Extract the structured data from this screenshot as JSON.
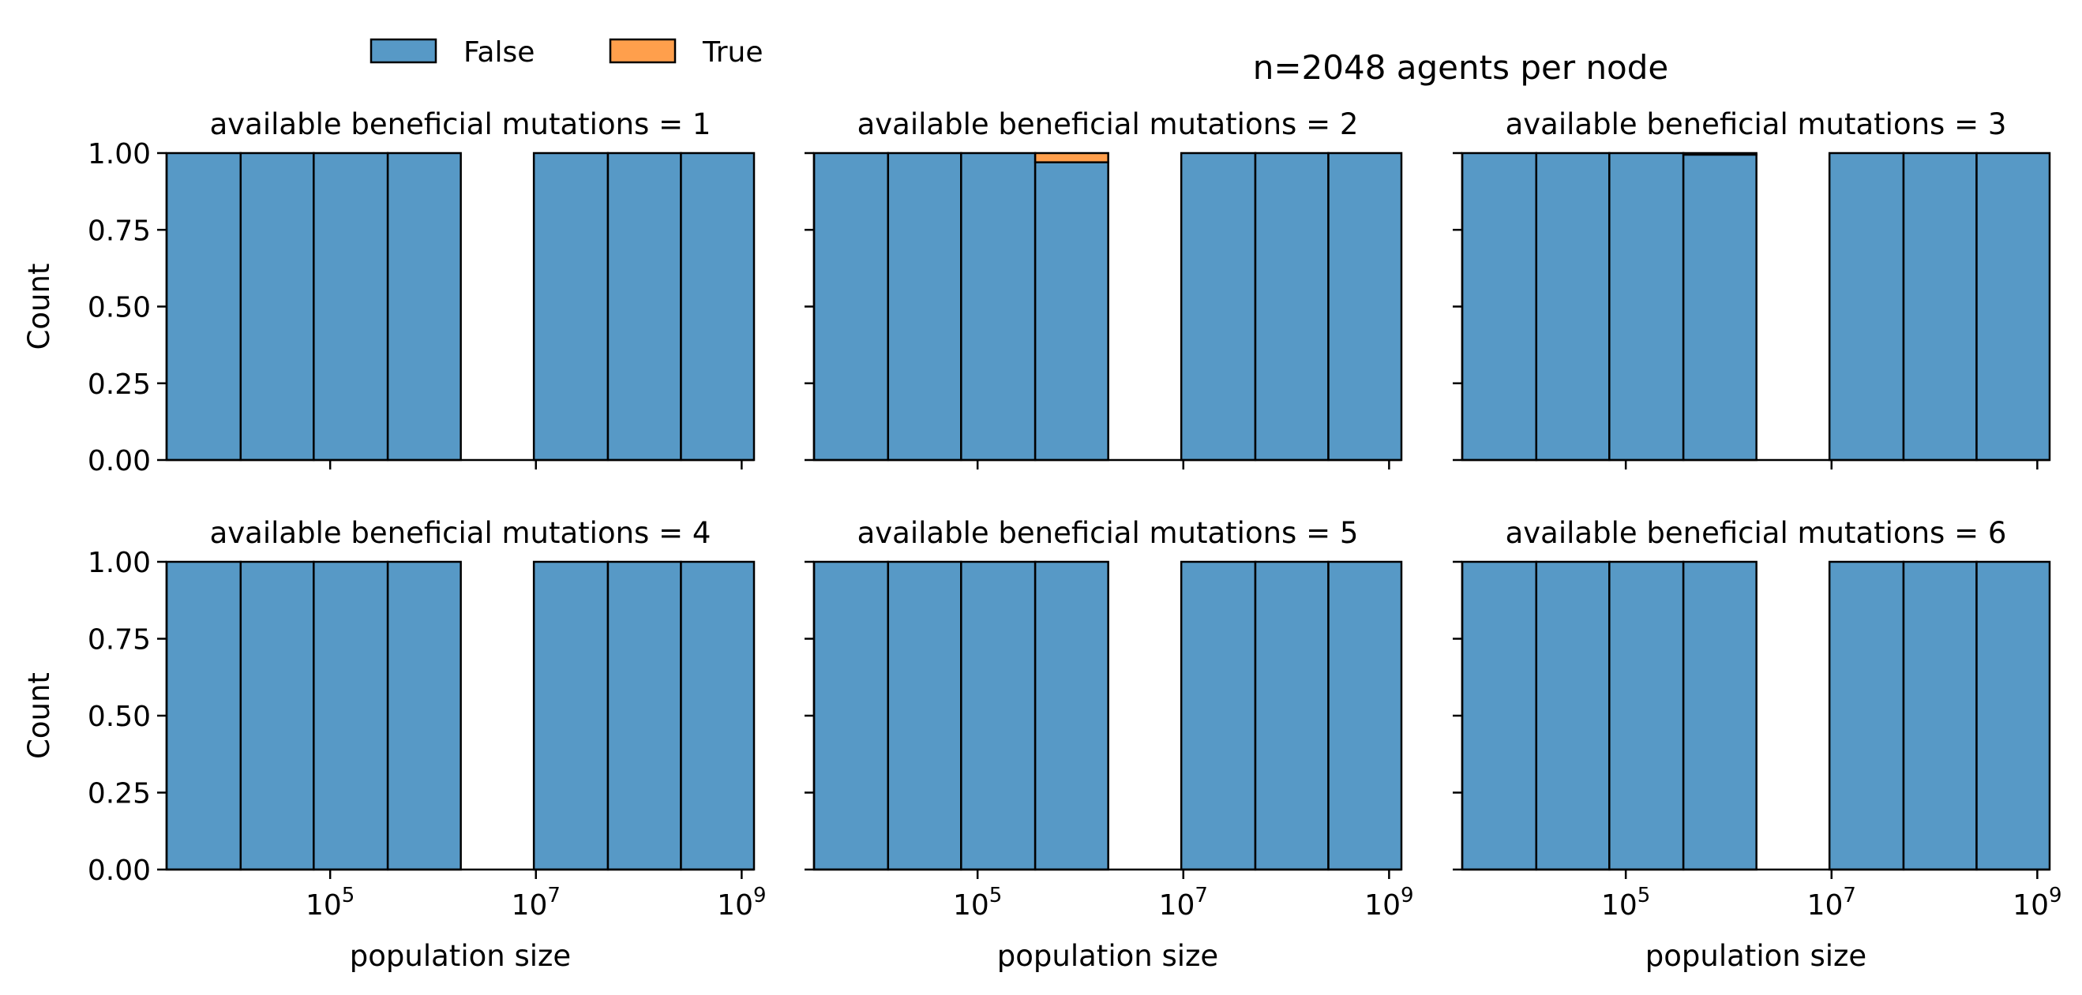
{
  "chart_data": {
    "type": "bar",
    "title": "n=2048 agents per node",
    "xlabel": "population size",
    "ylabel": "Count",
    "x_scale": "log",
    "xlim_log10": [
      3.41,
      9.12
    ],
    "x_tick_labels": [
      {
        "base": "10",
        "exp": "5",
        "log10": 5
      },
      {
        "base": "10",
        "exp": "7",
        "log10": 7
      },
      {
        "base": "10",
        "exp": "9",
        "log10": 9
      }
    ],
    "ylim": [
      0,
      1
    ],
    "y_ticks": [
      "0.00",
      "0.25",
      "0.50",
      "0.75",
      "1.00"
    ],
    "grid": false,
    "multiple": "stack",
    "legend": {
      "placement": "top-left",
      "entries": [
        {
          "name": "False",
          "color": "#5799c6"
        },
        {
          "name": "True",
          "color": "#ff9f4c"
        }
      ]
    },
    "bin_edges_log10": [
      3.41,
      4.13,
      4.84,
      5.56,
      6.27,
      6.98,
      7.7,
      8.41,
      9.12
    ],
    "panels": [
      {
        "title": "available beneficial mutations = 1",
        "series": [
          {
            "name": "False",
            "values": [
              1,
              1,
              1,
              1,
              0,
              1,
              1,
              1
            ]
          },
          {
            "name": "True",
            "values": [
              0,
              0,
              0,
              0,
              0,
              0,
              0,
              0
            ]
          }
        ]
      },
      {
        "title": "available beneficial mutations = 2",
        "series": [
          {
            "name": "False",
            "values": [
              1,
              1,
              1,
              0.97,
              0,
              1,
              1,
              1
            ]
          },
          {
            "name": "True",
            "values": [
              0,
              0,
              0,
              0.03,
              0,
              0,
              0,
              0
            ]
          }
        ]
      },
      {
        "title": "available beneficial mutations = 3",
        "series": [
          {
            "name": "False",
            "values": [
              1,
              1,
              1,
              0.995,
              0,
              1,
              1,
              1
            ]
          },
          {
            "name": "True",
            "values": [
              0,
              0,
              0,
              0.005,
              0,
              0,
              0,
              0
            ]
          }
        ]
      },
      {
        "title": "available beneficial mutations = 4",
        "series": [
          {
            "name": "False",
            "values": [
              1,
              1,
              1,
              1,
              0,
              1,
              1,
              1
            ]
          },
          {
            "name": "True",
            "values": [
              0,
              0,
              0,
              0,
              0,
              0,
              0,
              0
            ]
          }
        ]
      },
      {
        "title": "available beneficial mutations = 5",
        "series": [
          {
            "name": "False",
            "values": [
              1,
              1,
              1,
              1,
              0,
              1,
              1,
              1
            ]
          },
          {
            "name": "True",
            "values": [
              0,
              0,
              0,
              0,
              0,
              0,
              0,
              0
            ]
          }
        ]
      },
      {
        "title": "available beneficial mutations = 6",
        "series": [
          {
            "name": "False",
            "values": [
              1,
              1,
              1,
              1,
              0,
              1,
              1,
              1
            ]
          },
          {
            "name": "True",
            "values": [
              0,
              0,
              0,
              0,
              0,
              0,
              0,
              0
            ]
          }
        ]
      }
    ]
  }
}
